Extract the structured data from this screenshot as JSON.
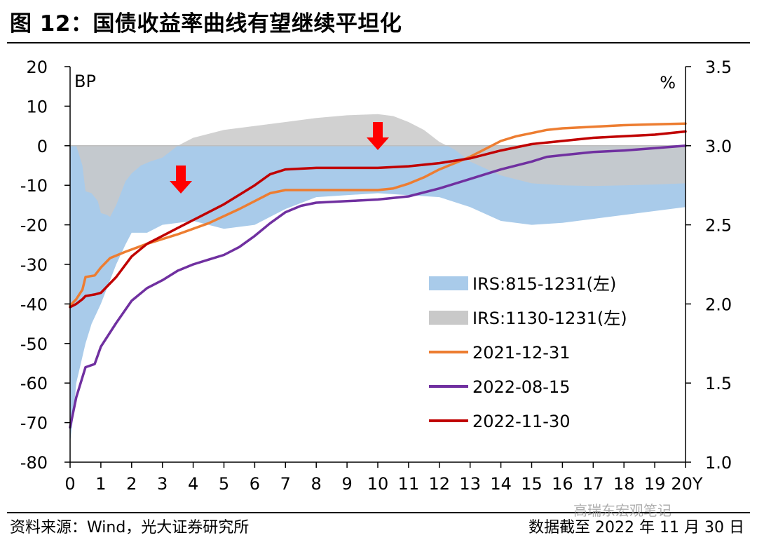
{
  "title": "图 12：国债收益率曲线有望继续平坦化",
  "source": "资料来源：Wind，光大证券研究所",
  "as_of": "数据截至 2022 年 11 月 30 日",
  "watermark": "高瑞东宏观笔记",
  "colors": {
    "irs_815": "#a9cbea",
    "irs_1130": "#c9c9c9",
    "d2021": "#ed7d31",
    "d20220815": "#7030a0",
    "d20221130": "#c00000",
    "arrow": "#ff0000"
  },
  "chart_data": {
    "type": "area",
    "title": "国债收益率曲线有望继续平坦化",
    "y_left": {
      "label": "BP",
      "lim": [
        -80,
        20
      ],
      "ticks": [
        20,
        10,
        0,
        -10,
        -20,
        -30,
        -40,
        -50,
        -60,
        -70,
        -80
      ]
    },
    "y_right": {
      "label": "%",
      "lim": [
        1.0,
        3.5
      ],
      "ticks": [
        "3.5",
        "3.0",
        "2.5",
        "2.0",
        "1.5",
        "1.0"
      ]
    },
    "x_ticks": [
      "0",
      "1",
      "2",
      "3",
      "4",
      "5",
      "6",
      "7",
      "8",
      "9",
      "10",
      "11",
      "12",
      "13",
      "14",
      "15",
      "16",
      "17",
      "18",
      "19",
      "20Y"
    ],
    "x_lim": [
      0,
      20
    ],
    "legend_position": "lower-right",
    "series": [
      {
        "name": "IRS:815-1231(左)",
        "kind": "area",
        "axis": "left",
        "x": [
          0,
          0.08,
          0.2,
          0.5,
          0.7,
          1,
          1.5,
          1.8,
          2,
          2.5,
          3,
          4,
          5,
          6,
          7,
          8,
          9,
          10,
          11,
          12,
          13,
          14,
          15,
          16,
          17,
          18,
          19,
          20
        ],
        "values": [
          -75,
          -70,
          -60,
          -50,
          -45,
          -40,
          -30,
          -25,
          -22,
          -22,
          -20,
          -19,
          -21,
          -20,
          -16,
          -13,
          -12.5,
          -12,
          -12.5,
          -13,
          -15.5,
          -19,
          -20,
          -19.5,
          -18.5,
          -17.5,
          -16.5,
          -15.5
        ]
      },
      {
        "name": "IRS:1130-1231(左)",
        "kind": "area",
        "axis": "left",
        "x": [
          0,
          0.2,
          0.4,
          0.5,
          0.7,
          0.9,
          1.0,
          1.2,
          1.3,
          1.5,
          1.8,
          2,
          2.3,
          2.6,
          3,
          3.5,
          4,
          5,
          6,
          7,
          8,
          9,
          10,
          10.5,
          11,
          11.5,
          12,
          12.5,
          13,
          14,
          15,
          16,
          17,
          18,
          19,
          20
        ],
        "values": [
          0,
          0,
          -5,
          -11.5,
          -12,
          -14,
          -17,
          -17.5,
          -18,
          -15,
          -9,
          -7,
          -5,
          -4,
          -3,
          0,
          2,
          4,
          5,
          6,
          7,
          7.7,
          8,
          7.5,
          6,
          4,
          1,
          -1,
          -4,
          -7.5,
          -9.5,
          -10,
          -10.2,
          -10,
          -9.8,
          -9.5
        ]
      },
      {
        "name": "2021-12-31",
        "kind": "line",
        "axis": "right",
        "x": [
          0,
          0.2,
          0.4,
          0.5,
          0.8,
          1,
          1.3,
          1.8,
          2.5,
          3.5,
          4.5,
          5.5,
          6.5,
          7,
          8,
          9,
          10,
          10.5,
          11,
          11.5,
          12,
          12.5,
          13,
          13.5,
          14,
          14.5,
          15,
          15.5,
          16,
          17,
          18,
          19,
          20
        ],
        "values": [
          1.99,
          2.03,
          2.09,
          2.17,
          2.18,
          2.23,
          2.29,
          2.33,
          2.38,
          2.44,
          2.51,
          2.6,
          2.7,
          2.72,
          2.72,
          2.72,
          2.72,
          2.73,
          2.76,
          2.8,
          2.85,
          2.89,
          2.93,
          2.98,
          3.03,
          3.06,
          3.08,
          3.1,
          3.11,
          3.12,
          3.13,
          3.135,
          3.14
        ]
      },
      {
        "name": "2022-08-15",
        "kind": "line",
        "axis": "right",
        "x": [
          0,
          0.2,
          0.5,
          0.8,
          1,
          1.5,
          2,
          2.5,
          3,
          3.5,
          4,
          4.5,
          5,
          5.5,
          6,
          6.5,
          7,
          7.5,
          8,
          9,
          10,
          10.5,
          11,
          12,
          13,
          14,
          15,
          15.5,
          16,
          17,
          18,
          19,
          20
        ],
        "values": [
          1.22,
          1.41,
          1.6,
          1.62,
          1.73,
          1.88,
          2.02,
          2.1,
          2.15,
          2.21,
          2.25,
          2.28,
          2.31,
          2.36,
          2.43,
          2.51,
          2.58,
          2.62,
          2.64,
          2.65,
          2.66,
          2.67,
          2.68,
          2.73,
          2.79,
          2.85,
          2.9,
          2.93,
          2.94,
          2.96,
          2.97,
          2.985,
          3.0
        ]
      },
      {
        "name": "2022-11-30",
        "kind": "line",
        "axis": "right",
        "x": [
          0,
          0.2,
          0.4,
          0.5,
          0.8,
          1,
          1.5,
          2,
          2.5,
          3,
          3.5,
          4,
          4.5,
          5,
          5.5,
          6,
          6.5,
          7,
          8,
          9,
          10,
          10.5,
          11,
          12,
          13,
          14,
          15,
          16,
          17,
          18,
          19,
          20
        ],
        "values": [
          1.98,
          2.0,
          2.03,
          2.05,
          2.06,
          2.07,
          2.17,
          2.3,
          2.38,
          2.43,
          2.48,
          2.53,
          2.58,
          2.63,
          2.69,
          2.75,
          2.82,
          2.85,
          2.86,
          2.86,
          2.86,
          2.865,
          2.87,
          2.89,
          2.92,
          2.97,
          3.01,
          3.03,
          3.05,
          3.06,
          3.07,
          3.09
        ]
      }
    ],
    "annotations": [
      {
        "type": "down-arrow",
        "x": 3.6,
        "y_left": -5
      },
      {
        "type": "down-arrow",
        "x": 10.0,
        "y_left": 6
      }
    ]
  }
}
